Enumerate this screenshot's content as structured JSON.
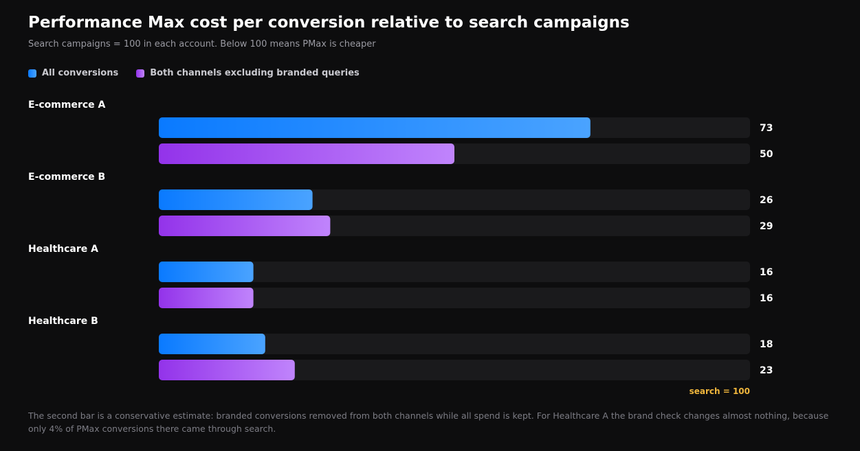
{
  "title": "Performance Max cost per conversion relative to search campaigns",
  "subtitle": "Search campaigns = 100 in each account. Below 100 means PMax is cheaper",
  "legend": {
    "all": "All conversions",
    "excl": "Both channels excluding branded queries"
  },
  "colors": {
    "background": "#0d0d0e",
    "track": "#1a1a1c",
    "blue_start": "#0a7aff",
    "blue_end": "#4aa3ff",
    "purple_start": "#9333ea",
    "purple_end": "#c084fc",
    "reference": "#f0b63c"
  },
  "chart_data": {
    "type": "bar",
    "orientation": "horizontal",
    "categories": [
      "E-commerce A",
      "E-commerce B",
      "Healthcare A",
      "Healthcare B"
    ],
    "series": [
      {
        "name": "All conversions",
        "values": [
          73,
          26,
          16,
          18
        ]
      },
      {
        "name": "Both channels excluding branded queries",
        "values": [
          50,
          29,
          16,
          23
        ]
      }
    ],
    "xlim": [
      0,
      100
    ],
    "reference_label": "search = 100",
    "legend_position": "top-left",
    "grid": false
  },
  "footnote": "The second bar is a conservative estimate: branded conversions removed from both channels while all spend is kept. For Healthcare A the brand check changes almost nothing, because only 4% of PMax conversions there came through search."
}
